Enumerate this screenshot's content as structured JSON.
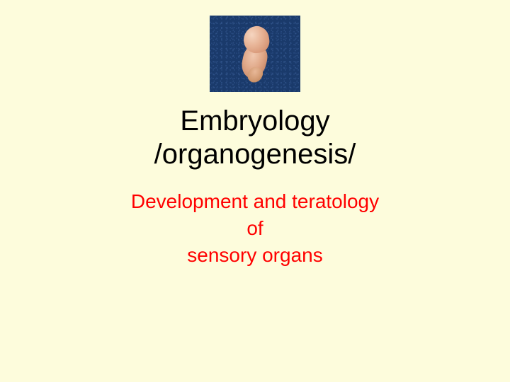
{
  "slide": {
    "background_color": "#fdfcdc",
    "image": {
      "width": 128,
      "height": 108,
      "background_color": "#1a3a6b",
      "subject": "embryo",
      "subject_colors": [
        "#f5d5c0",
        "#e8b598",
        "#d89878",
        "#b87858"
      ]
    },
    "title": {
      "line1": "Embryology",
      "line2": "/organogenesis/",
      "color": "#000000",
      "fontsize": 40
    },
    "subtitle": {
      "line1": "Development and teratology",
      "line2": "of",
      "line3": "sensory organs",
      "color": "#ff0000",
      "fontsize": 28
    }
  }
}
